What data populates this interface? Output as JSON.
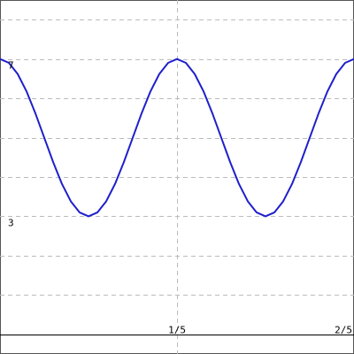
{
  "chart_data": {
    "type": "line",
    "title": "",
    "xlabel": "",
    "ylabel": "",
    "xlim": [
      0,
      0.4
    ],
    "ylim": [
      -0.5,
      8.5
    ],
    "grid": true,
    "x_ticks": [
      {
        "value": 0.2,
        "label": "1/5"
      },
      {
        "value": 0.4,
        "label": "2/5"
      }
    ],
    "y_ticks": [
      {
        "value": 3,
        "label": "3"
      },
      {
        "value": 7,
        "label": "7"
      }
    ],
    "series": [
      {
        "color": "#1f1fcc",
        "x": [
          0,
          0.01,
          0.02,
          0.03,
          0.04,
          0.05,
          0.06,
          0.07,
          0.08,
          0.09,
          0.1,
          0.11,
          0.12,
          0.13,
          0.14,
          0.15,
          0.16,
          0.17,
          0.18,
          0.19,
          0.2,
          0.21,
          0.22,
          0.23,
          0.24,
          0.25,
          0.26,
          0.27,
          0.28,
          0.29,
          0.3,
          0.31,
          0.32,
          0.33,
          0.34,
          0.35,
          0.36,
          0.37,
          0.38,
          0.39,
          0.4
        ],
        "y": [
          7.0,
          6.902,
          6.618,
          6.176,
          5.618,
          5.0,
          4.382,
          3.824,
          3.382,
          3.098,
          3.0,
          3.098,
          3.382,
          3.824,
          4.382,
          5.0,
          5.618,
          6.176,
          6.618,
          6.902,
          7.0,
          6.902,
          6.618,
          6.176,
          5.618,
          5.0,
          4.382,
          3.824,
          3.382,
          3.098,
          3.0,
          3.098,
          3.382,
          3.824,
          4.382,
          5.0,
          5.618,
          6.176,
          6.618,
          6.902,
          7.0
        ]
      }
    ]
  },
  "colors": {
    "grid": "#bbbbbb",
    "axis": "#000000",
    "curve": "#1f1fcc",
    "border": "#555555"
  }
}
